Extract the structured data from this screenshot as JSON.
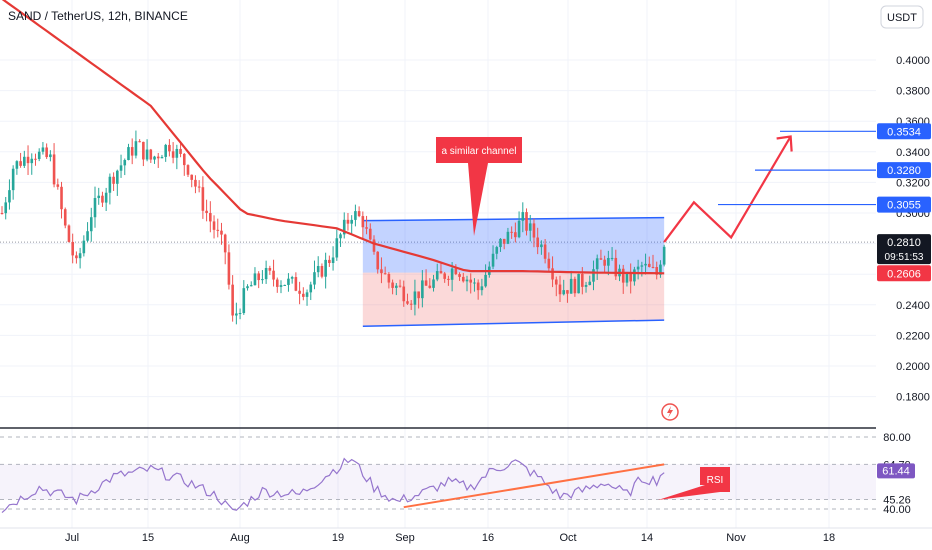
{
  "header": {
    "symbol_title": "SAND / TetherUS, 12h, BINANCE",
    "currency_button": "USDT"
  },
  "price_axis": {
    "ticks": [
      "0.4000",
      "0.3800",
      "0.3600",
      "0.3400",
      "0.3200",
      "0.3000",
      "0.2400",
      "0.2200",
      "0.2000",
      "0.1800"
    ]
  },
  "price_badges": {
    "level_1": "0.3534",
    "level_2": "0.3280",
    "level_3": "0.3055",
    "last_price": "0.2810",
    "countdown": "09:51:53",
    "ma_value": "0.2606"
  },
  "rsi_axis": {
    "top_label": "80.00",
    "upper_value": "64.79",
    "current_value": "61.44",
    "lower_value": "45.26",
    "bottom_label": "40.00"
  },
  "time_axis": {
    "labels": [
      "Jul",
      "15",
      "Aug",
      "19",
      "Sep",
      "16",
      "Oct",
      "14",
      "Nov",
      "18"
    ]
  },
  "annotations": {
    "channel_callout": "a similar channel",
    "rsi_callout": "RSI"
  },
  "colors": {
    "up_candle": "#26a69a",
    "down_candle": "#ef5350",
    "moving_average": "#e53935",
    "channel_line": "#2962ff",
    "projection_arrow": "#f23645",
    "rsi_line": "#9575cd",
    "rsi_trendline": "#ff7043",
    "badge_blue": "#2962ff",
    "badge_red": "#f23645",
    "badge_dark": "#131722"
  },
  "chart_data": {
    "type": "candlestick",
    "timeframe": "12h",
    "y_range": [
      0.16,
      0.42
    ],
    "close_path": [
      [
        0,
        0.3
      ],
      [
        3,
        0.33
      ],
      [
        8,
        0.34
      ],
      [
        13,
        0.335
      ],
      [
        17,
        0.29
      ],
      [
        20,
        0.265
      ],
      [
        24,
        0.3
      ],
      [
        30,
        0.325
      ],
      [
        36,
        0.345
      ],
      [
        40,
        0.335
      ],
      [
        45,
        0.345
      ],
      [
        50,
        0.33
      ],
      [
        55,
        0.3
      ],
      [
        60,
        0.275
      ],
      [
        62,
        0.23
      ],
      [
        66,
        0.25
      ],
      [
        70,
        0.26
      ],
      [
        76,
        0.255
      ],
      [
        82,
        0.25
      ],
      [
        88,
        0.27
      ],
      [
        94,
        0.3
      ],
      [
        97,
        0.295
      ],
      [
        100,
        0.27
      ],
      [
        104,
        0.255
      ],
      [
        110,
        0.245
      ],
      [
        116,
        0.255
      ],
      [
        122,
        0.265
      ],
      [
        128,
        0.25
      ],
      [
        134,
        0.28
      ],
      [
        140,
        0.295
      ],
      [
        146,
        0.275
      ],
      [
        150,
        0.25
      ],
      [
        156,
        0.255
      ],
      [
        162,
        0.27
      ],
      [
        168,
        0.255
      ],
      [
        172,
        0.265
      ],
      [
        176,
        0.26
      ],
      [
        178,
        0.281
      ]
    ],
    "moving_average_path": [
      [
        0,
        0.44
      ],
      [
        20,
        0.405
      ],
      [
        40,
        0.37
      ],
      [
        55,
        0.325
      ],
      [
        65,
        0.3
      ],
      [
        75,
        0.295
      ],
      [
        90,
        0.29
      ],
      [
        100,
        0.28
      ],
      [
        115,
        0.27
      ],
      [
        125,
        0.262
      ],
      [
        140,
        0.262
      ],
      [
        160,
        0.261
      ],
      [
        178,
        0.2606
      ]
    ],
    "channel": {
      "top": [
        0.295,
        0.297
      ],
      "bottom": [
        0.226,
        0.23
      ],
      "mid": 0.261
    },
    "projection_path": [
      [
        178,
        0.281
      ],
      [
        186,
        0.307
      ],
      [
        196,
        0.284
      ],
      [
        212,
        0.35
      ]
    ],
    "rsi_series": [
      [
        0,
        40
      ],
      [
        10,
        52
      ],
      [
        20,
        45
      ],
      [
        30,
        58
      ],
      [
        40,
        62
      ],
      [
        50,
        55
      ],
      [
        58,
        47
      ],
      [
        62,
        38
      ],
      [
        70,
        50
      ],
      [
        80,
        48
      ],
      [
        88,
        60
      ],
      [
        94,
        68
      ],
      [
        100,
        52
      ],
      [
        106,
        44
      ],
      [
        112,
        48
      ],
      [
        120,
        55
      ],
      [
        126,
        52
      ],
      [
        132,
        62
      ],
      [
        138,
        66
      ],
      [
        144,
        58
      ],
      [
        150,
        47
      ],
      [
        156,
        50
      ],
      [
        162,
        55
      ],
      [
        168,
        48
      ],
      [
        172,
        57
      ],
      [
        176,
        56
      ],
      [
        178,
        61.44
      ]
    ],
    "rsi_trendline": [
      [
        108,
        41
      ],
      [
        178,
        64.79
      ]
    ]
  }
}
